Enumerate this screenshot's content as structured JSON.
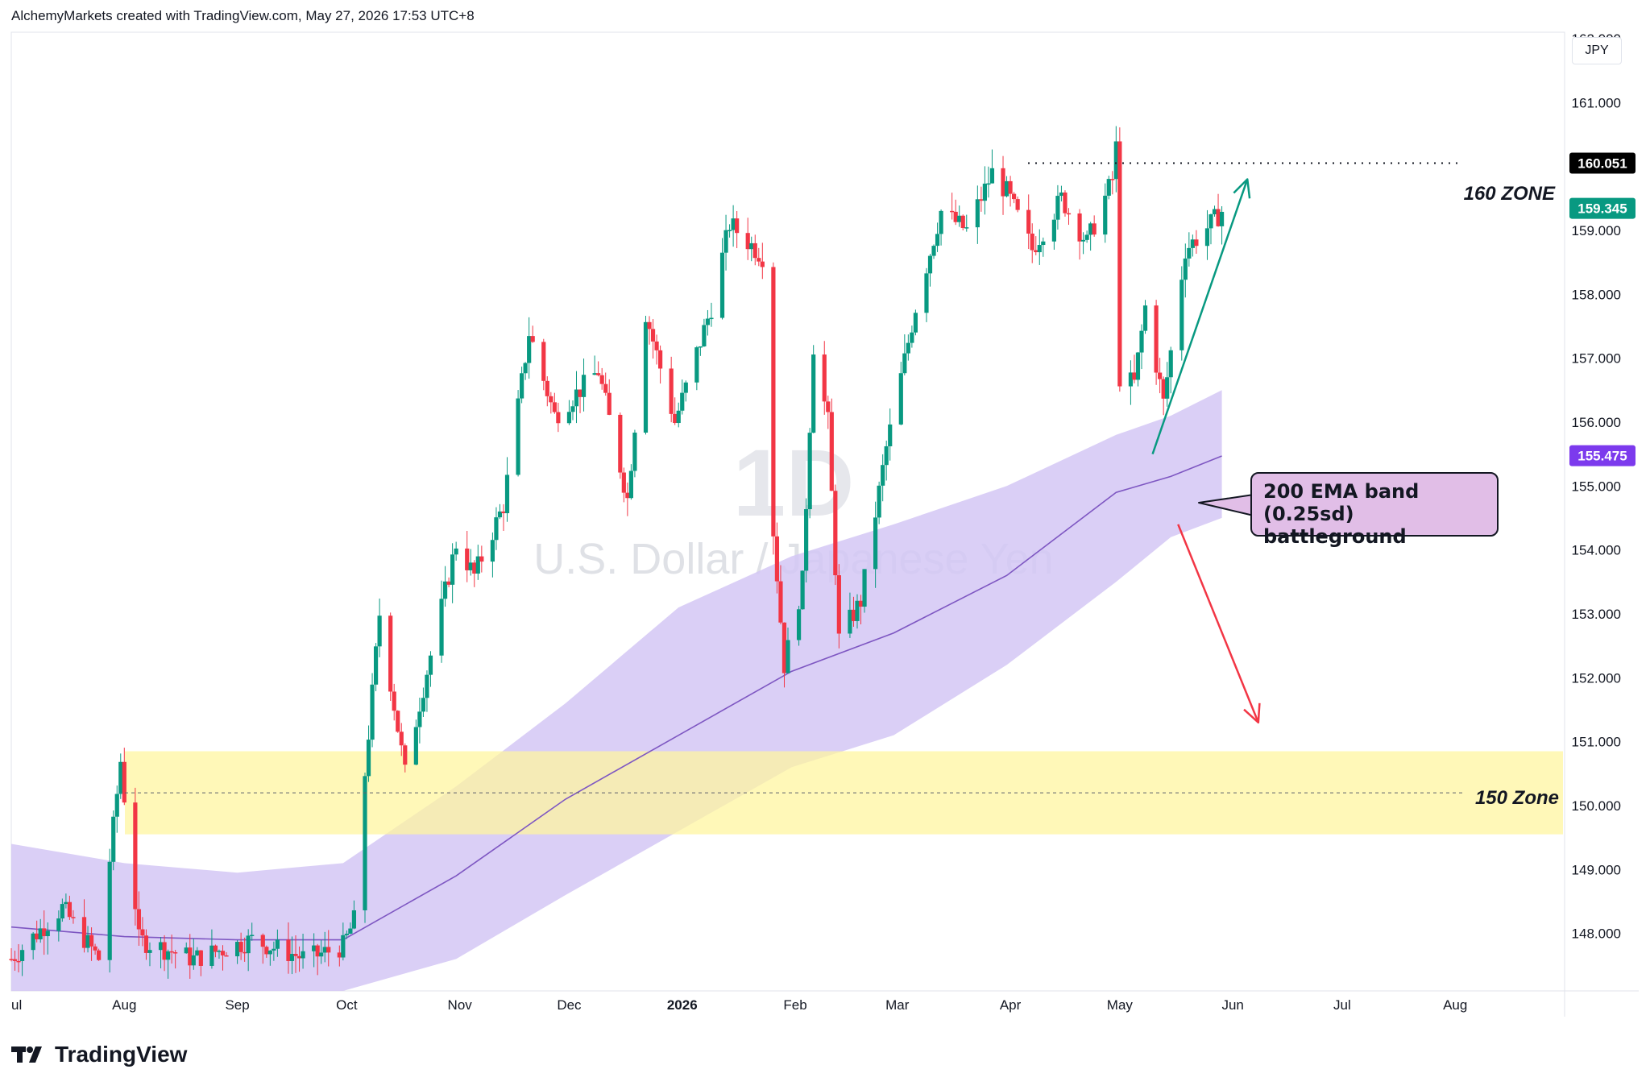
{
  "header": {
    "attribution": "AlchemyMarkets created with TradingView.com, May 27, 2026 17:53 UTC+8"
  },
  "watermark": {
    "interval": "1D",
    "symbol": "U.S. Dollar / Japanese Yen"
  },
  "price_axis": {
    "currency": "JPY"
  },
  "footer": {
    "brand": "TradingView"
  },
  "colors": {
    "bull": "#089981",
    "bear": "#f23645",
    "ema_line": "#7e57c2",
    "ema_band": "#d4c7f5",
    "zone_150": "#fff59d",
    "price_badge": "#089981",
    "level_badge": "#000000",
    "ema_badge": "#7c3aed",
    "callout_bg": "#e1bee7",
    "arrow_up": "#089981",
    "arrow_down": "#f23645"
  },
  "annotations": {
    "zone_160_label": "160 ZONE",
    "zone_150_label": "150 Zone",
    "ema_box_line1": "200 EMA band (0.25sd)",
    "ema_box_line2": "battleground"
  },
  "badges": {
    "level": "160.051",
    "last_price": "159.345",
    "ema": "155.475"
  },
  "chart_data": {
    "type": "candlestick",
    "title": "U.S. Dollar / Japanese Yen",
    "interval": "1D",
    "yticks": [
      "148.000",
      "149.000",
      "150.000",
      "151.000",
      "152.000",
      "153.000",
      "154.000",
      "155.000",
      "156.000",
      "157.000",
      "158.000",
      "159.000",
      "160.000",
      "161.000",
      "162.000"
    ],
    "ylim": [
      147.1,
      162.1
    ],
    "xlim": [
      "2025-07-01",
      "2026-08-31"
    ],
    "xticks": [
      {
        "label": "ul",
        "date": "2025-07-01"
      },
      {
        "label": "Aug",
        "date": "2025-08-01"
      },
      {
        "label": "Sep",
        "date": "2025-09-01"
      },
      {
        "label": "Oct",
        "date": "2025-10-01"
      },
      {
        "label": "Nov",
        "date": "2025-11-01"
      },
      {
        "label": "Dec",
        "date": "2025-12-01"
      },
      {
        "label": "2026",
        "date": "2026-01-01",
        "bold": true
      },
      {
        "label": "Feb",
        "date": "2026-02-01"
      },
      {
        "label": "Mar",
        "date": "2026-03-01"
      },
      {
        "label": "Apr",
        "date": "2026-04-01"
      },
      {
        "label": "May",
        "date": "2026-05-01"
      },
      {
        "label": "Jun",
        "date": "2026-06-01"
      },
      {
        "label": "Jul",
        "date": "2026-07-01"
      },
      {
        "label": "Aug",
        "date": "2026-08-01"
      }
    ],
    "series": [
      {
        "name": "USD/JPY",
        "anchors": [
          [
            "2025-07-01",
            147.6
          ],
          [
            "2025-07-15",
            148.4
          ],
          [
            "2025-07-25",
            147.6
          ],
          [
            "2025-07-31",
            150.7
          ],
          [
            "2025-08-05",
            147.9
          ],
          [
            "2025-08-20",
            147.6
          ],
          [
            "2025-09-05",
            147.9
          ],
          [
            "2025-09-20",
            147.6
          ],
          [
            "2025-09-30",
            147.8
          ],
          [
            "2025-10-03",
            148.2
          ],
          [
            "2025-10-06",
            150.5
          ],
          [
            "2025-10-10",
            153.0
          ],
          [
            "2025-10-17",
            150.5
          ],
          [
            "2025-10-21",
            151.6
          ],
          [
            "2025-10-31",
            154.1
          ],
          [
            "2025-11-05",
            153.6
          ],
          [
            "2025-11-13",
            154.7
          ],
          [
            "2025-11-20",
            157.4
          ],
          [
            "2025-11-27",
            156.1
          ],
          [
            "2025-12-09",
            156.8
          ],
          [
            "2025-12-17",
            154.8
          ],
          [
            "2025-12-22",
            157.7
          ],
          [
            "2025-12-30",
            156.0
          ],
          [
            "2026-01-09",
            157.8
          ],
          [
            "2026-01-14",
            159.1
          ],
          [
            "2026-01-23",
            158.6
          ],
          [
            "2026-01-26",
            154.3
          ],
          [
            "2026-01-29",
            152.2
          ],
          [
            "2026-02-03",
            153.5
          ],
          [
            "2026-02-06",
            157.2
          ],
          [
            "2026-02-10",
            156.0
          ],
          [
            "2026-02-13",
            152.6
          ],
          [
            "2026-02-19",
            153.2
          ],
          [
            "2026-02-26",
            155.6
          ],
          [
            "2026-03-06",
            157.8
          ],
          [
            "2026-03-13",
            159.3
          ],
          [
            "2026-03-20",
            159.0
          ],
          [
            "2026-03-27",
            159.9
          ],
          [
            "2026-03-31",
            159.6
          ],
          [
            "2026-04-07",
            158.7
          ],
          [
            "2026-04-15",
            159.5
          ],
          [
            "2026-04-22",
            158.8
          ],
          [
            "2026-04-29",
            159.8
          ],
          [
            "2026-04-30",
            160.3
          ],
          [
            "2026-05-01",
            156.7
          ],
          [
            "2026-05-05",
            156.6
          ],
          [
            "2026-05-08",
            157.8
          ],
          [
            "2026-05-13",
            156.3
          ],
          [
            "2026-05-19",
            158.7
          ],
          [
            "2026-05-26",
            159.1
          ],
          [
            "2026-05-29",
            159.3
          ]
        ]
      },
      {
        "name": "200 EMA",
        "ema_line": [
          [
            "2025-07-01",
            148.1
          ],
          [
            "2025-08-01",
            147.95
          ],
          [
            "2025-09-01",
            147.9
          ],
          [
            "2025-09-30",
            147.9
          ],
          [
            "2025-10-31",
            148.9
          ],
          [
            "2025-11-30",
            150.1
          ],
          [
            "2025-12-31",
            151.1
          ],
          [
            "2026-01-31",
            152.1
          ],
          [
            "2026-02-28",
            152.7
          ],
          [
            "2026-03-31",
            153.6
          ],
          [
            "2026-04-30",
            154.9
          ],
          [
            "2026-05-15",
            155.15
          ],
          [
            "2026-05-29",
            155.47
          ]
        ],
        "band_upper": [
          [
            "2025-07-01",
            149.4
          ],
          [
            "2025-08-01",
            149.1
          ],
          [
            "2025-09-01",
            148.95
          ],
          [
            "2025-09-30",
            149.1
          ],
          [
            "2025-10-31",
            150.3
          ],
          [
            "2025-11-30",
            151.6
          ],
          [
            "2025-12-31",
            153.1
          ],
          [
            "2026-01-31",
            153.9
          ],
          [
            "2026-02-28",
            154.4
          ],
          [
            "2026-03-31",
            155.0
          ],
          [
            "2026-04-30",
            155.8
          ],
          [
            "2026-05-15",
            156.1
          ],
          [
            "2026-05-29",
            156.5
          ]
        ],
        "band_lower": [
          [
            "2025-07-01",
            147.1
          ],
          [
            "2025-09-30",
            147.1
          ],
          [
            "2025-10-31",
            147.6
          ],
          [
            "2025-11-30",
            148.6
          ],
          [
            "2025-12-31",
            149.6
          ],
          [
            "2026-01-31",
            150.6
          ],
          [
            "2026-02-28",
            151.1
          ],
          [
            "2026-03-31",
            152.2
          ],
          [
            "2026-04-30",
            153.5
          ],
          [
            "2026-05-15",
            154.2
          ],
          [
            "2026-05-29",
            154.5
          ]
        ]
      }
    ],
    "levels": [
      {
        "name": "160 ZONE",
        "price": 160.051,
        "style": "dotted"
      },
      {
        "name": "150 Zone",
        "price": 150.2,
        "zone": [
          149.55,
          150.85
        ],
        "style": "dashed"
      }
    ],
    "last_price": 159.345,
    "ema_value": 155.475,
    "projections": [
      {
        "from": [
          "2026-05-10",
          155.5
        ],
        "to": [
          "2026-06-05",
          159.8
        ],
        "direction": "up"
      },
      {
        "from": [
          "2026-05-17",
          154.4
        ],
        "to": [
          "2026-06-08",
          151.3
        ],
        "direction": "down"
      }
    ]
  }
}
